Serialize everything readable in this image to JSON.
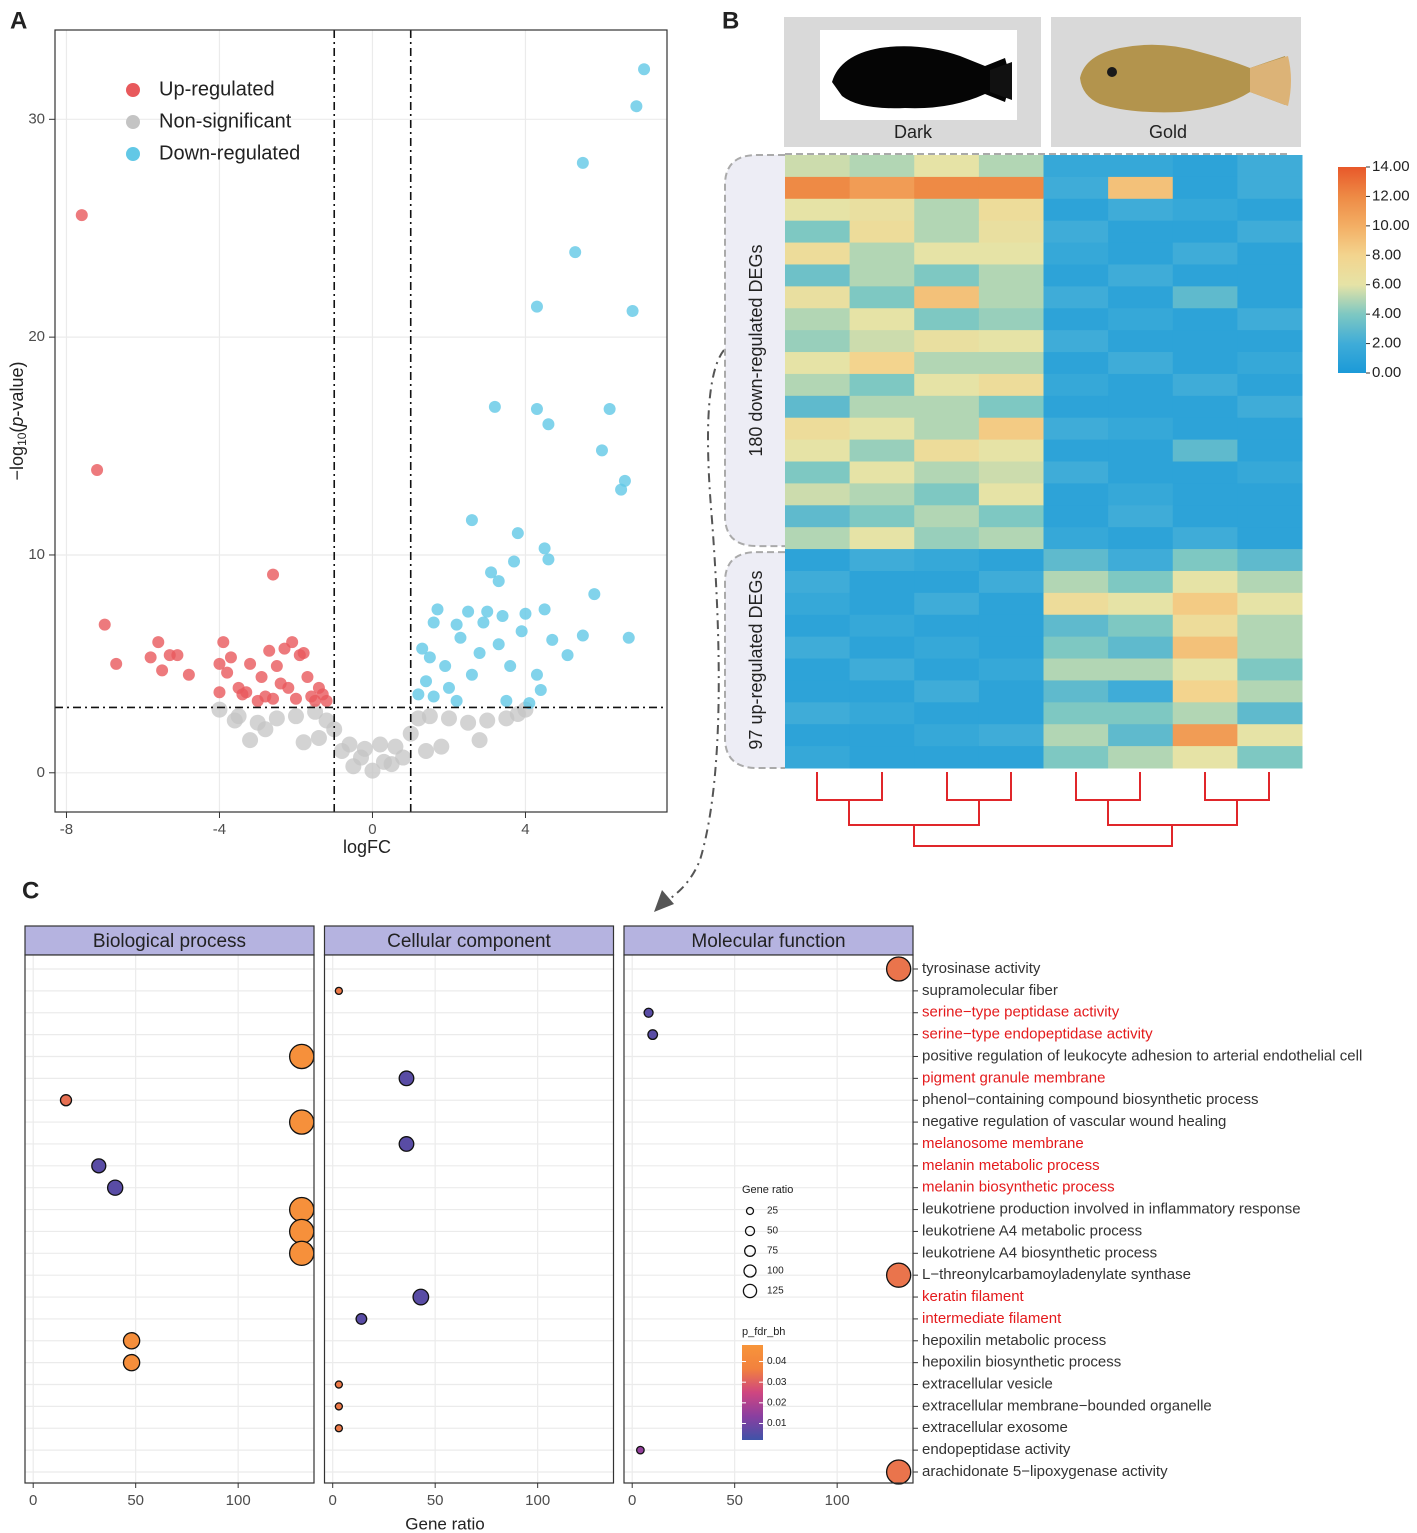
{
  "panel_labels": [
    "A",
    "B",
    "C"
  ],
  "chart_data": [
    {
      "type": "scatter",
      "xlabel": "logFC",
      "ylabel": {
        "prefix": "−log",
        "sub": "10",
        "open": "(",
        "italic": "p",
        "rest": "-value)"
      },
      "xlim": [
        -8.3,
        7.7
      ],
      "ylim": [
        -1.8,
        34.1
      ],
      "xticks": [
        -8,
        -4,
        0,
        4
      ],
      "yticks": [
        0,
        10,
        20,
        30
      ],
      "vlines": [
        -1,
        1
      ],
      "hline": 3,
      "grid": true,
      "legend": "top-left",
      "series": [
        {
          "name": "Up-regulated",
          "color": "#e8595c",
          "x": [
            -7.6,
            -7.2,
            -7.0,
            -6.7,
            -5.8,
            -5.6,
            -5.5,
            -5.3,
            -5.1,
            -4.8,
            -4.0,
            -3.9,
            -3.8,
            -3.7,
            -3.5,
            -3.3,
            -3.2,
            -2.9,
            -2.7,
            -2.6,
            -2.5,
            -2.3,
            -2.2,
            -2.1,
            -1.9,
            -1.7,
            -1.6,
            -1.4,
            -1.2,
            -2.8,
            -2.0,
            -3.0,
            -2.4,
            -1.8,
            -4.0,
            -3.4,
            -2.6,
            -1.5,
            -1.3
          ],
          "y": [
            25.6,
            13.9,
            6.8,
            5.0,
            5.3,
            6.0,
            4.7,
            5.4,
            5.4,
            4.5,
            5.0,
            6.0,
            4.6,
            5.3,
            3.9,
            3.7,
            5.0,
            4.4,
            5.6,
            9.1,
            4.9,
            5.7,
            3.9,
            6.0,
            5.4,
            4.4,
            3.5,
            3.9,
            3.3,
            3.5,
            3.4,
            3.3,
            4.1,
            5.5,
            3.7,
            3.6,
            3.4,
            3.3,
            3.6
          ]
        },
        {
          "name": "Non-significant",
          "color": "#c4c4c4",
          "x": [
            0,
            0.3,
            -0.3,
            0.6,
            -0.6,
            1.0,
            -1.0,
            1.2,
            -1.2,
            1.5,
            -1.5,
            2.0,
            -2.0,
            2.5,
            -2.5,
            3.0,
            -3.0,
            3.5,
            -3.5,
            4.0,
            -4.0,
            0.2,
            -0.2,
            0.8,
            -0.8,
            1.8,
            -1.8,
            2.8,
            -2.8,
            -3.2,
            -3.6,
            3.8,
            -0.5,
            0.5,
            1.4,
            -1.4
          ],
          "y": [
            0.1,
            0.5,
            0.7,
            1.2,
            1.3,
            1.8,
            2.0,
            2.5,
            2.4,
            2.6,
            2.8,
            2.5,
            2.6,
            2.3,
            2.5,
            2.4,
            2.3,
            2.5,
            2.6,
            2.9,
            2.9,
            1.3,
            1.1,
            0.7,
            1.0,
            1.2,
            1.4,
            1.5,
            2.0,
            1.5,
            2.4,
            2.7,
            0.3,
            0.4,
            1.0,
            1.6
          ]
        },
        {
          "name": "Down-regulated",
          "color": "#62c8e6",
          "x": [
            7.1,
            6.9,
            5.5,
            5.3,
            4.3,
            6.8,
            3.2,
            4.3,
            4.6,
            6.2,
            6.0,
            6.6,
            6.5,
            2.6,
            3.8,
            4.5,
            4.6,
            3.1,
            3.7,
            3.3,
            5.8,
            6.7,
            3.0,
            2.5,
            1.7,
            1.6,
            2.2,
            4.0,
            3.9,
            4.5,
            4.7,
            5.1,
            5.5,
            2.8,
            1.9,
            1.4,
            1.2,
            1.6,
            2.0,
            2.6,
            3.3,
            3.6,
            4.3,
            4.4,
            4.1,
            3.5,
            2.2,
            1.3,
            1.5,
            2.3,
            2.9,
            3.4
          ],
          "y": [
            32.3,
            30.6,
            28.0,
            23.9,
            21.4,
            21.2,
            16.8,
            16.7,
            16.0,
            16.7,
            14.8,
            13.4,
            13.0,
            11.6,
            11.0,
            10.3,
            9.8,
            9.2,
            9.7,
            8.8,
            8.2,
            6.2,
            7.4,
            7.4,
            7.5,
            6.9,
            6.8,
            7.3,
            6.5,
            7.5,
            6.1,
            5.4,
            6.3,
            5.5,
            4.9,
            4.2,
            3.6,
            3.5,
            3.9,
            4.5,
            5.9,
            4.9,
            4.5,
            3.8,
            3.2,
            3.3,
            3.3,
            5.7,
            5.3,
            6.2,
            6.9,
            7.2
          ]
        }
      ]
    },
    {
      "type": "heatmap",
      "columns": [
        "Dark",
        "Gold"
      ],
      "clim": [
        0,
        14
      ],
      "cticks": [
        {
          "value": 0,
          "label": "0.00"
        },
        {
          "value": 2,
          "label": "2.00"
        },
        {
          "value": 4,
          "label": "4.00"
        },
        {
          "value": 6,
          "label": "6.00"
        },
        {
          "value": 8,
          "label": "8.00"
        },
        {
          "value": 10,
          "label": "10.00"
        },
        {
          "value": 12,
          "label": "12.00"
        },
        {
          "value": 14,
          "label": "14.00"
        }
      ],
      "colors": [
        "#1b9ad8",
        "#3facd8",
        "#7ec8c2",
        "#e6e3a6",
        "#f3d48e",
        "#f3ae64",
        "#ee8a45",
        "#e8582a"
      ],
      "groups": [
        {
          "label": "180 down-regulated DEGs",
          "values": [
            [
              5.5,
              5,
              6,
              5,
              1.5,
              1.5,
              1,
              2
            ],
            [
              12,
              11,
              12,
              12,
              2,
              9,
              1,
              2
            ],
            [
              6,
              6.5,
              5,
              7,
              1,
              2,
              1.5,
              1
            ],
            [
              4,
              7,
              5,
              6.5,
              2,
              1,
              1,
              2
            ],
            [
              7,
              5,
              6,
              6,
              1.5,
              1,
              2,
              1
            ],
            [
              3.5,
              5,
              4,
              5,
              1,
              2,
              1,
              1
            ],
            [
              6.5,
              4,
              9,
              5,
              2,
              1,
              3,
              1
            ],
            [
              5,
              6,
              4,
              4.5,
              1,
              1.5,
              1,
              2
            ],
            [
              4.5,
              5.5,
              6.5,
              6,
              2,
              1,
              1,
              1
            ],
            [
              6,
              8,
              5,
              5,
              1,
              2,
              1,
              1.5
            ],
            [
              5,
              4,
              6,
              7,
              1.5,
              1,
              2,
              1
            ],
            [
              3,
              5,
              5,
              4,
              1,
              1,
              1,
              2
            ],
            [
              7,
              6,
              5,
              8.5,
              2,
              1.5,
              1,
              1
            ],
            [
              6,
              4.5,
              7,
              6,
              1,
              1,
              3,
              1
            ],
            [
              4,
              6,
              5,
              5.5,
              2,
              1,
              1,
              1.5
            ],
            [
              5.5,
              5,
              4,
              6,
              1,
              1.5,
              1,
              1
            ],
            [
              3,
              4,
              5,
              4,
              1,
              2,
              1,
              1
            ],
            [
              5,
              6,
              4.5,
              5,
              1.5,
              1,
              2,
              1
            ]
          ]
        },
        {
          "label": "97 up-regulated DEGs",
          "values": [
            [
              1,
              2,
              1.5,
              1,
              3,
              2,
              4,
              3
            ],
            [
              2,
              1,
              1,
              2,
              5,
              4,
              6,
              5
            ],
            [
              1.5,
              1,
              2,
              1,
              7,
              6,
              8.5,
              6
            ],
            [
              1,
              1.5,
              1,
              1,
              3,
              4,
              7,
              5
            ],
            [
              2,
              1,
              1.5,
              1,
              4,
              3,
              9,
              5
            ],
            [
              1,
              2,
              1,
              1.5,
              5,
              5,
              6,
              4
            ],
            [
              1,
              1,
              2,
              1,
              3,
              2,
              8,
              5
            ],
            [
              2,
              1.5,
              1,
              1,
              4,
              4,
              5,
              3
            ],
            [
              1,
              1,
              1.5,
              2,
              5,
              3,
              11,
              6
            ],
            [
              1.5,
              1,
              1,
              1,
              4,
              5,
              6,
              4
            ]
          ]
        }
      ]
    },
    {
      "type": "dotplot",
      "xlabel": "Gene ratio",
      "xlim": [
        -4,
        137
      ],
      "xticks": [
        0,
        50,
        100
      ],
      "grid": true,
      "highlight_color": "#e41a1c",
      "terms": [
        {
          "label": "tyrosinase activity",
          "highlighted": false
        },
        {
          "label": "supramolecular fiber",
          "highlighted": false
        },
        {
          "label": "serine−type peptidase activity",
          "highlighted": true
        },
        {
          "label": "serine−type endopeptidase activity",
          "highlighted": true
        },
        {
          "label": "positive regulation of leukocyte adhesion to arterial endothelial cell",
          "highlighted": false
        },
        {
          "label": "pigment granule membrane",
          "highlighted": true
        },
        {
          "label": "phenol−containing compound biosynthetic process",
          "highlighted": false
        },
        {
          "label": "negative regulation of vascular wound healing",
          "highlighted": false
        },
        {
          "label": "melanosome membrane",
          "highlighted": true
        },
        {
          "label": "melanin metabolic process",
          "highlighted": true
        },
        {
          "label": "melanin biosynthetic process",
          "highlighted": true
        },
        {
          "label": "leukotriene production involved in inflammatory response",
          "highlighted": false
        },
        {
          "label": "leukotriene A4 metabolic process",
          "highlighted": false
        },
        {
          "label": "leukotriene A4 biosynthetic process",
          "highlighted": false
        },
        {
          "label": "L−threonylcarbamoyladenylate synthase",
          "highlighted": false
        },
        {
          "label": "keratin filament",
          "highlighted": true
        },
        {
          "label": "intermediate filament",
          "highlighted": true
        },
        {
          "label": "hepoxilin metabolic process",
          "highlighted": false
        },
        {
          "label": "hepoxilin biosynthetic process",
          "highlighted": false
        },
        {
          "label": "extracellular vesicle",
          "highlighted": false
        },
        {
          "label": "extracellular membrane−bounded organelle",
          "highlighted": false
        },
        {
          "label": "extracellular exosome",
          "highlighted": false
        },
        {
          "label": "endopeptidase activity",
          "highlighted": false
        },
        {
          "label": "arachidonate 5−lipoxygenase activity",
          "highlighted": false
        }
      ],
      "facets": [
        {
          "name": "Biological process",
          "values": [
            null,
            null,
            null,
            null,
            131,
            null,
            16,
            131,
            null,
            32,
            40,
            131,
            131,
            131,
            null,
            null,
            null,
            48,
            48,
            null,
            null,
            null,
            null,
            null
          ],
          "p": [
            null,
            null,
            null,
            null,
            0.045,
            null,
            0.033,
            0.045,
            null,
            0.006,
            0.006,
            0.045,
            0.045,
            0.045,
            null,
            null,
            null,
            0.044,
            0.044,
            null,
            null,
            null,
            null,
            null
          ]
        },
        {
          "name": "Cellular component",
          "values": [
            null,
            3,
            null,
            null,
            null,
            36,
            null,
            null,
            36,
            null,
            null,
            null,
            null,
            null,
            null,
            43,
            14,
            null,
            null,
            3,
            3,
            3,
            null,
            null
          ],
          "p": [
            null,
            0.035,
            null,
            null,
            null,
            0.006,
            null,
            null,
            0.006,
            null,
            null,
            null,
            null,
            null,
            null,
            0.006,
            0.006,
            null,
            null,
            0.035,
            0.035,
            0.035,
            null,
            null
          ]
        },
        {
          "name": "Molecular function",
          "values": [
            130,
            null,
            8,
            10,
            null,
            null,
            null,
            null,
            null,
            null,
            null,
            null,
            null,
            null,
            130,
            null,
            null,
            null,
            null,
            null,
            null,
            null,
            4,
            130
          ],
          "p": [
            0.034,
            null,
            0.006,
            0.006,
            null,
            null,
            null,
            null,
            null,
            null,
            null,
            null,
            null,
            null,
            0.034,
            null,
            null,
            null,
            null,
            null,
            null,
            null,
            0.015,
            0.034
          ]
        }
      ],
      "size_legend": {
        "title": "Gene ratio",
        "values": [
          25,
          50,
          75,
          100,
          125
        ]
      },
      "color_legend": {
        "title": "p_fdr_bh",
        "lim": [
          0.002,
          0.048
        ],
        "ticks": [
          0.01,
          0.02,
          0.03,
          0.04
        ],
        "colors": [
          "#3f53a8",
          "#8a3fa0",
          "#cf4680",
          "#f2813e",
          "#f7953a"
        ]
      }
    }
  ]
}
